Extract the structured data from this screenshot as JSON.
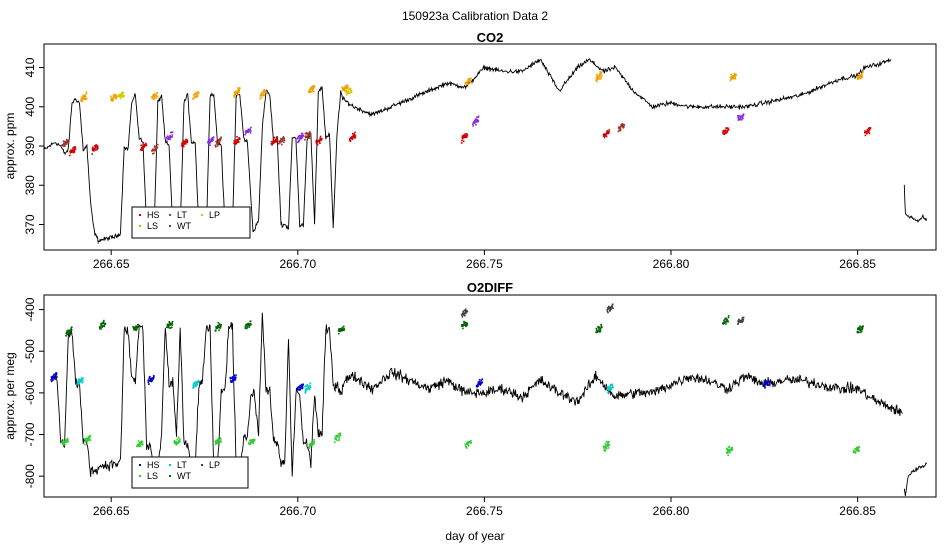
{
  "figure_title": "150923a   Calibration Data 2",
  "chart_data": [
    {
      "type": "line",
      "title": "CO2",
      "xlabel": "",
      "ylabel": "approx. ppm",
      "xlim": [
        266.632,
        266.871
      ],
      "ylim": [
        363.5,
        416
      ],
      "x_ticks": [
        266.65,
        266.7,
        266.75,
        266.8,
        266.85
      ],
      "x_tick_labels": [
        "266.65",
        "266.70",
        "266.75",
        "266.80",
        "266.85"
      ],
      "y_ticks": [
        370,
        380,
        390,
        400,
        410
      ],
      "y_tick_labels": [
        "370",
        "380",
        "390",
        "400",
        "410"
      ],
      "legend": {
        "position": "bottom-left",
        "entries": [
          {
            "label": "HS",
            "color": "#d00000"
          },
          {
            "label": "LS",
            "color": "#f0a000"
          },
          {
            "label": "LT",
            "color": "#8a2be2"
          },
          {
            "label": "WT",
            "color": "#a0342a"
          },
          {
            "label": "LP",
            "color": "#d8c800"
          }
        ]
      },
      "series": [
        {
          "name": "measurement",
          "color": "#000000",
          "noise": 0.7,
          "x": [
            266.632,
            266.635,
            266.6365,
            266.6375,
            266.6385,
            266.6395,
            266.6405,
            266.6415,
            266.6425,
            266.6435,
            266.6445,
            266.6455,
            266.6465,
            266.647,
            266.6515,
            266.6525,
            266.6535,
            266.6545,
            266.6555,
            266.6565,
            266.6575,
            266.6585,
            266.6595,
            266.6605,
            266.6615,
            266.6625,
            266.6635,
            266.6645,
            266.6655,
            266.6665,
            266.6675,
            266.6685,
            266.6695,
            266.6705,
            266.6715,
            266.6725,
            266.6735,
            266.6745,
            266.6755,
            266.6765,
            266.6775,
            266.6785,
            266.6795,
            266.6805,
            266.6815,
            266.6825,
            266.6835,
            266.6845,
            266.6855,
            266.6865,
            266.688,
            266.6885,
            266.6895,
            266.6905,
            266.6915,
            266.6925,
            266.6935,
            266.6945,
            266.6955,
            266.6965,
            266.6975,
            266.6985,
            266.6995,
            266.7005,
            266.7015,
            266.7025,
            266.7035,
            266.7045,
            266.7055,
            266.7065,
            266.7075,
            266.7085,
            266.7095,
            266.7105,
            266.7115,
            266.712,
            266.715,
            266.72,
            266.725,
            266.73,
            266.735,
            266.74,
            266.745,
            266.75,
            266.755,
            266.76,
            266.765,
            266.77,
            266.775,
            266.778,
            266.782,
            266.785,
            266.79,
            266.795,
            266.8,
            266.805,
            266.81,
            266.815,
            266.82,
            266.825,
            266.83,
            266.835,
            266.84,
            266.845,
            266.85,
            266.852,
            266.856,
            266.859
          ],
          "y": [
            389,
            391,
            390,
            388,
            389,
            401,
            402,
            401,
            389,
            390,
            375,
            368,
            366,
            366,
            367,
            368,
            390,
            389,
            401,
            403,
            392,
            391,
            370,
            368,
            368,
            401,
            403,
            391,
            390,
            369,
            368,
            368,
            401,
            403,
            391,
            391,
            369,
            368,
            368,
            403,
            403,
            391,
            390,
            369,
            368,
            369,
            403,
            403,
            392,
            391,
            368,
            369,
            371,
            395,
            404,
            403,
            391,
            392,
            370,
            370,
            369,
            392,
            392,
            370,
            370,
            392,
            393,
            370,
            404,
            405,
            392,
            393,
            369,
            393,
            404,
            402,
            400,
            398,
            400,
            402,
            404,
            406,
            405,
            410,
            409,
            409,
            412,
            404,
            410,
            412,
            409,
            410,
            404,
            400,
            401,
            400,
            400,
            400,
            400,
            401,
            402,
            403,
            405,
            407,
            408,
            410,
            411,
            412
          ]
        },
        {
          "name": "segment-1",
          "color": "#000000",
          "noise": 0.4,
          "x": [
            266.8625,
            266.8628,
            266.8635,
            266.8645,
            266.8655,
            266.8665,
            266.8675,
            266.8685
          ],
          "y": [
            380,
            373,
            372,
            372,
            371,
            371,
            372,
            371
          ]
        }
      ],
      "markers": [
        {
          "label": "HS",
          "color": "#d00000",
          "x": [
            266.6395,
            266.6455,
            266.6585,
            266.6695,
            266.6835,
            266.6935,
            266.7055,
            266.7145,
            266.7445,
            266.7825,
            266.8145,
            266.8525
          ],
          "y": [
            388.5,
            389,
            389.5,
            390.5,
            391,
            391,
            391,
            392,
            392,
            393,
            393.5,
            393.5
          ]
        },
        {
          "label": "LS",
          "color": "#f0a000",
          "x": [
            266.6425,
            266.6505,
            266.6615,
            266.6725,
            266.6835,
            266.6905,
            266.7035,
            266.7125,
            266.7455,
            266.7805,
            266.8165,
            266.8505
          ],
          "y": [
            402,
            402,
            402.5,
            402.5,
            403.5,
            403,
            404,
            404.5,
            406,
            407.5,
            407.5,
            407.5
          ]
        },
        {
          "label": "LT",
          "color": "#8a2be2",
          "x": [
            266.6655,
            266.6765,
            266.6865,
            266.7005,
            266.7475,
            266.8185
          ],
          "y": [
            392,
            391,
            393.5,
            392,
            396,
            397
          ]
        },
        {
          "label": "WT",
          "color": "#a0342a",
          "x": [
            266.6375,
            266.6615,
            266.6785,
            266.6955,
            266.7025,
            266.7865
          ],
          "y": [
            390.5,
            389,
            390.5,
            391,
            392.5,
            394.5
          ]
        },
        {
          "label": "LP",
          "color": "#d8c800",
          "x": [
            266.6525,
            266.7135
          ],
          "y": [
            402.5,
            403.5
          ]
        }
      ]
    },
    {
      "type": "line",
      "title": "O2DIFF",
      "xlabel": "day of year",
      "ylabel": "approx. per meg",
      "xlim": [
        266.632,
        266.871
      ],
      "ylim": [
        -850,
        -365
      ],
      "x_ticks": [
        266.65,
        266.7,
        266.75,
        266.8,
        266.85
      ],
      "x_tick_labels": [
        "266.65",
        "266.70",
        "266.75",
        "266.80",
        "266.85"
      ],
      "y_ticks": [
        -800,
        -700,
        -600,
        -500,
        -400
      ],
      "y_tick_labels": [
        "-800",
        "-700",
        "-600",
        "-500",
        "-400"
      ],
      "legend": {
        "position": "bottom-left",
        "entries": [
          {
            "label": "HS",
            "color": "#0000cc"
          },
          {
            "label": "LS",
            "color": "#33cc33"
          },
          {
            "label": "LT",
            "color": "#00cccc"
          },
          {
            "label": "WT",
            "color": "#006400"
          },
          {
            "label": "LP",
            "color": "#404040"
          }
        ]
      },
      "series": [
        {
          "name": "measurement",
          "color": "#000000",
          "noise": 16,
          "x": [
            266.6345,
            266.6355,
            266.6365,
            266.6375,
            266.6385,
            266.6395,
            266.6405,
            266.6415,
            266.6425,
            266.6435,
            266.6445,
            266.6455,
            266.6465,
            266.6475,
            266.6515,
            266.6525,
            266.6535,
            266.6545,
            266.6555,
            266.6565,
            266.6575,
            266.6585,
            266.6595,
            266.6605,
            266.6615,
            266.6625,
            266.6635,
            266.6645,
            266.6655,
            266.6665,
            266.6675,
            266.6685,
            266.6695,
            266.6705,
            266.6715,
            266.6725,
            266.6735,
            266.6745,
            266.6755,
            266.6765,
            266.6775,
            266.6785,
            266.6795,
            266.6805,
            266.6815,
            266.6825,
            266.6835,
            266.6845,
            266.6855,
            266.6865,
            266.6875,
            266.6885,
            266.6895,
            266.6905,
            266.6915,
            266.6925,
            266.6935,
            266.6945,
            266.6955,
            266.6965,
            266.6975,
            266.6985,
            266.6995,
            266.7005,
            266.7015,
            266.7025,
            266.7035,
            266.7045,
            266.7055,
            266.7065,
            266.7075,
            266.7085,
            266.7095,
            266.7105,
            266.7115,
            266.7125,
            266.715,
            266.72,
            266.725,
            266.73,
            266.735,
            266.74,
            266.745,
            266.75,
            266.755,
            266.76,
            266.765,
            266.77,
            266.775,
            266.78,
            266.785,
            266.79,
            266.795,
            266.8,
            266.805,
            266.81,
            266.815,
            266.82,
            266.825,
            266.83,
            266.835,
            266.84,
            266.845,
            266.85,
            266.855,
            266.86,
            266.862
          ],
          "y": [
            -565,
            -567,
            -720,
            -725,
            -460,
            -455,
            -575,
            -580,
            -720,
            -715,
            -790,
            -785,
            -780,
            -775,
            -770,
            -765,
            -450,
            -450,
            -565,
            -570,
            -440,
            -445,
            -730,
            -725,
            -790,
            -785,
            -700,
            -440,
            -580,
            -575,
            -700,
            -445,
            -720,
            -725,
            -790,
            -785,
            -580,
            -575,
            -440,
            -445,
            -790,
            -780,
            -600,
            -590,
            -440,
            -445,
            -780,
            -780,
            -705,
            -705,
            -600,
            -610,
            -700,
            -410,
            -590,
            -595,
            -720,
            -720,
            -770,
            -770,
            -470,
            -800,
            -600,
            -600,
            -725,
            -720,
            -770,
            -600,
            -700,
            -700,
            -450,
            -450,
            -580,
            -580,
            -600,
            -570,
            -560,
            -590,
            -550,
            -570,
            -590,
            -570,
            -600,
            -600,
            -590,
            -610,
            -570,
            -600,
            -620,
            -560,
            -610,
            -600,
            -600,
            -580,
            -560,
            -570,
            -590,
            -560,
            -580,
            -570,
            -570,
            -580,
            -590,
            -590,
            -620,
            -640,
            -650
          ]
        },
        {
          "name": "segment-1",
          "color": "#000000",
          "noise": 6,
          "x": [
            266.8625,
            266.8628,
            266.8635,
            266.8645,
            266.8655,
            266.8665,
            266.8675,
            266.8685
          ],
          "y": [
            -830,
            -850,
            -800,
            -790,
            -785,
            -780,
            -775,
            -770
          ]
        }
      ],
      "markers": [
        {
          "label": "HS",
          "color": "#0000cc",
          "x": [
            266.6345,
            266.6605,
            266.6825,
            266.7005,
            266.7485,
            266.8255
          ],
          "y": [
            -565,
            -570,
            -570,
            -590,
            -580,
            -580
          ]
        },
        {
          "label": "LS",
          "color": "#33cc33",
          "x": [
            266.6375,
            266.6435,
            266.6575,
            266.6675,
            266.6785,
            266.6875,
            266.7035,
            266.7105,
            266.7455,
            266.7825,
            266.8155,
            266.8495
          ],
          "y": [
            -720,
            -715,
            -725,
            -720,
            -720,
            -720,
            -725,
            -710,
            -725,
            -730,
            -740,
            -740
          ]
        },
        {
          "label": "LT",
          "color": "#00cccc",
          "x": [
            266.6415,
            266.6725,
            266.7025,
            266.7835
          ],
          "y": [
            -575,
            -580,
            -590,
            -590
          ]
        },
        {
          "label": "WT",
          "color": "#006400",
          "x": [
            266.6385,
            266.6475,
            266.6565,
            266.6655,
            266.6785,
            266.6865,
            266.7115,
            266.7445,
            266.7805,
            266.8145,
            266.8505
          ],
          "y": [
            -455,
            -440,
            -445,
            -440,
            -445,
            -440,
            -450,
            -440,
            -450,
            -430,
            -450
          ]
        },
        {
          "label": "LP",
          "color": "#404040",
          "x": [
            266.7445,
            266.7835,
            266.8185
          ],
          "y": [
            -410,
            -400,
            -430
          ]
        }
      ]
    }
  ]
}
